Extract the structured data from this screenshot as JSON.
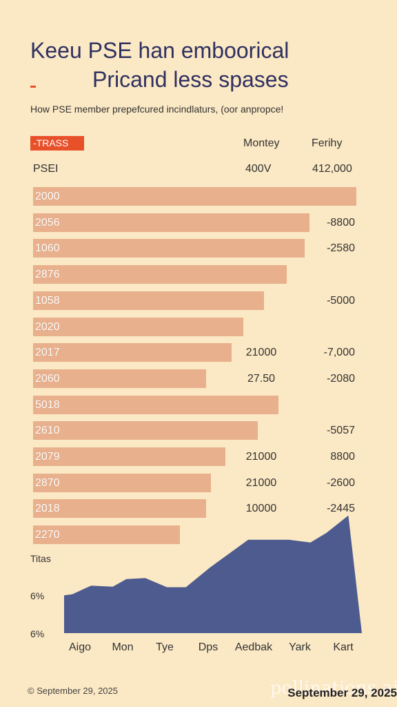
{
  "header": {
    "title_line1": "Keeu PSE han emboorical",
    "title_line2": "Pricand less spases",
    "subtitle": "How PSE member prepefcured incindlaturs, (oor anpropce!",
    "tag": "-TRASS",
    "col1": "Montey",
    "col2": "Ferihy",
    "row_label": "PSEI",
    "row_val1": "400V",
    "row_val2": "412,000"
  },
  "chart_data": [
    {
      "type": "bar",
      "orientation": "horizontal",
      "categories": [
        "2000",
        "2056",
        "1060",
        "2876",
        "1058",
        "2020",
        "2017",
        "2060",
        "5018",
        "2610",
        "2079",
        "2870",
        "2018",
        "2270"
      ],
      "values": [
        100,
        85.5,
        84,
        78.5,
        71.5,
        65,
        61.5,
        53.5,
        76,
        69.5,
        59.5,
        55,
        53.5,
        45.5
      ],
      "xlim": [
        0,
        100
      ],
      "col1_values": [
        "",
        "",
        "",
        "",
        "",
        "",
        "21000",
        "27.50",
        "",
        "",
        "21000",
        "21000",
        "10000",
        ""
      ],
      "col2_values": [
        "",
        "-8800",
        "-2580",
        "",
        "-5000",
        "",
        "-7,000",
        "-2080",
        "",
        "-5057",
        "8800",
        "-2600",
        "-2445",
        ""
      ],
      "colors": {
        "bar": "#e8b08c"
      }
    },
    {
      "type": "area",
      "title": "Titas",
      "categories": [
        "Aigo",
        "Mon",
        "Tye",
        "Dps",
        "Aedbak",
        "Yark",
        "Kart"
      ],
      "x": [
        0,
        0.3,
        1.0,
        1.8,
        2.3,
        3.0,
        3.8,
        4.5,
        5.4,
        6.8,
        7.5,
        8.3,
        9.1,
        9.7,
        10.5,
        11.0
      ],
      "values": [
        7.0,
        7.2,
        8.8,
        8.6,
        10.0,
        10.2,
        8.5,
        8.5,
        12.2,
        17.3,
        17.3,
        17.3,
        16.8,
        18.6,
        21.8,
        0
      ],
      "yticks": [
        "6%",
        "6%"
      ],
      "colors": {
        "area": "#4d5b8f"
      }
    }
  ],
  "footer": {
    "date": "© September 29, 2025",
    "date_right": "September 29, 2025",
    "watermark": "pollinations.ai"
  }
}
